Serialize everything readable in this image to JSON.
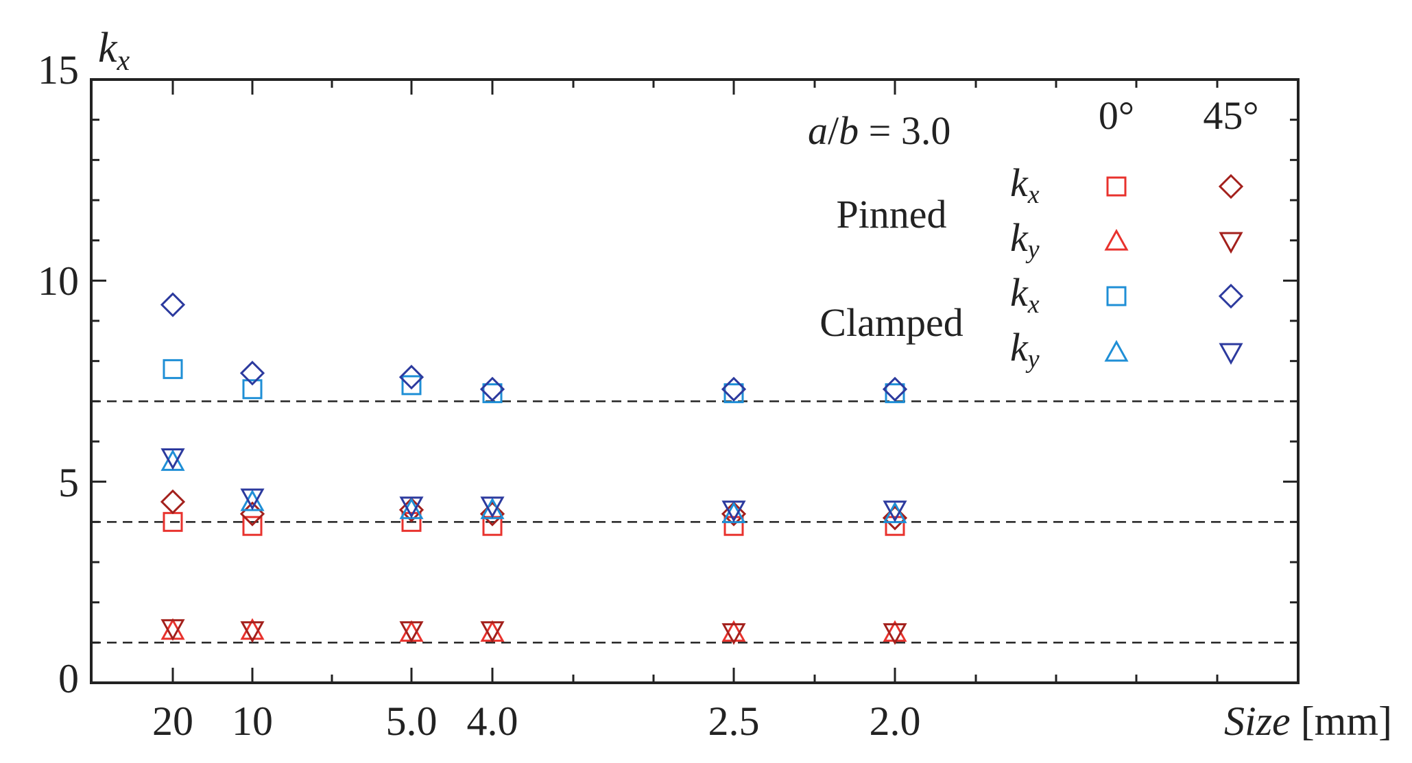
{
  "chart_data": {
    "type": "scatter",
    "title": "",
    "ylabel": "k",
    "ylabel_sub": "x",
    "xlabel_italic": "Size",
    "xlabel_unit": "[mm]",
    "ylim": [
      0,
      15
    ],
    "yticks": [
      0,
      5,
      10,
      15
    ],
    "xcategories": [
      "20",
      "10",
      "5.0",
      "4.0",
      "2.5",
      "2.0"
    ],
    "reference_lines": [
      1,
      4,
      7
    ],
    "annotation": {
      "prefix": "a",
      "slash": "/",
      "suffix": "b",
      "rest": " = 3.0"
    },
    "legend": {
      "angle_0": "0°",
      "angle_45": "45°",
      "groups": [
        {
          "name": "Pinned",
          "rows": [
            {
              "k": "k",
              "sub": "x"
            },
            {
              "k": "k",
              "sub": "y"
            }
          ]
        },
        {
          "name": "Clamped",
          "rows": [
            {
              "k": "k",
              "sub": "x"
            },
            {
              "k": "k",
              "sub": "y"
            }
          ]
        }
      ]
    },
    "colors": {
      "pinned_0": "#e8322d",
      "pinned_45": "#a3201c",
      "clamped_0": "#1f8fd6",
      "clamped_45": "#2c3a9e",
      "axis": "#222222"
    },
    "series": [
      {
        "name": "Pinned kx 0°",
        "marker": "square",
        "color": "pinned_0",
        "values": [
          4.0,
          3.9,
          4.0,
          3.9,
          3.9,
          3.9
        ]
      },
      {
        "name": "Pinned ky 0°",
        "marker": "triangle-up",
        "color": "pinned_0",
        "values": [
          1.3,
          1.3,
          1.25,
          1.25,
          1.25,
          1.25
        ]
      },
      {
        "name": "Pinned kx 45°",
        "marker": "diamond",
        "color": "pinned_45",
        "values": [
          4.5,
          4.2,
          4.3,
          4.2,
          4.2,
          4.1
        ]
      },
      {
        "name": "Pinned ky 45°",
        "marker": "triangle-down",
        "color": "pinned_45",
        "values": [
          1.35,
          1.3,
          1.3,
          1.3,
          1.25,
          1.25
        ]
      },
      {
        "name": "Clamped kx 0°",
        "marker": "square",
        "color": "clamped_0",
        "values": [
          7.8,
          7.3,
          7.4,
          7.2,
          7.2,
          7.2
        ]
      },
      {
        "name": "Clamped ky 0°",
        "marker": "triangle-up",
        "color": "clamped_0",
        "values": [
          5.5,
          4.5,
          4.3,
          4.3,
          4.2,
          4.2
        ]
      },
      {
        "name": "Clamped kx 45°",
        "marker": "diamond",
        "color": "clamped_45",
        "values": [
          9.4,
          7.7,
          7.6,
          7.3,
          7.3,
          7.3
        ]
      },
      {
        "name": "Clamped ky 45°",
        "marker": "triangle-down",
        "color": "clamped_45",
        "values": [
          5.6,
          4.6,
          4.4,
          4.4,
          4.3,
          4.3
        ]
      }
    ]
  }
}
